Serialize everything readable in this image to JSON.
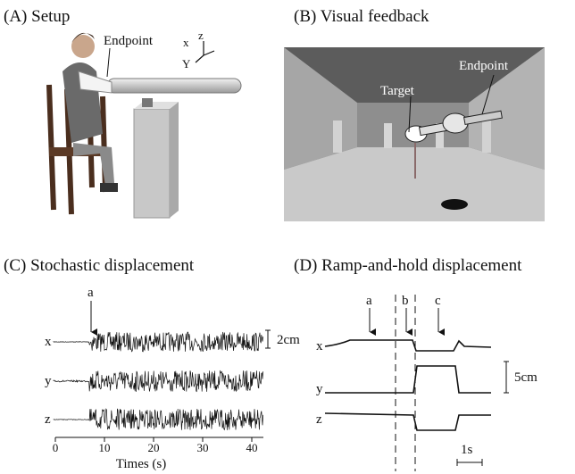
{
  "panels": [
    {
      "label": "(A) Setup",
      "annotations": [
        "Endpoint",
        "x",
        "z",
        "Y"
      ]
    },
    {
      "label": "(B) Visual feedback",
      "annotations": [
        "Target",
        "Endpoint"
      ]
    },
    {
      "label": "(C) Stochastic displacement",
      "traces": [
        "x",
        "y",
        "z"
      ],
      "markers": [
        "a"
      ],
      "x_ticks": [
        "0",
        "10",
        "20",
        "30",
        "40"
      ],
      "x_label": "Times (s)",
      "scale_bar": "2cm"
    },
    {
      "label": "(D) Ramp-and-hold displacement",
      "traces": [
        "x",
        "y",
        "z"
      ],
      "markers": [
        "a",
        "b",
        "c"
      ],
      "scale_bars": [
        "5cm",
        "1s"
      ]
    }
  ]
}
